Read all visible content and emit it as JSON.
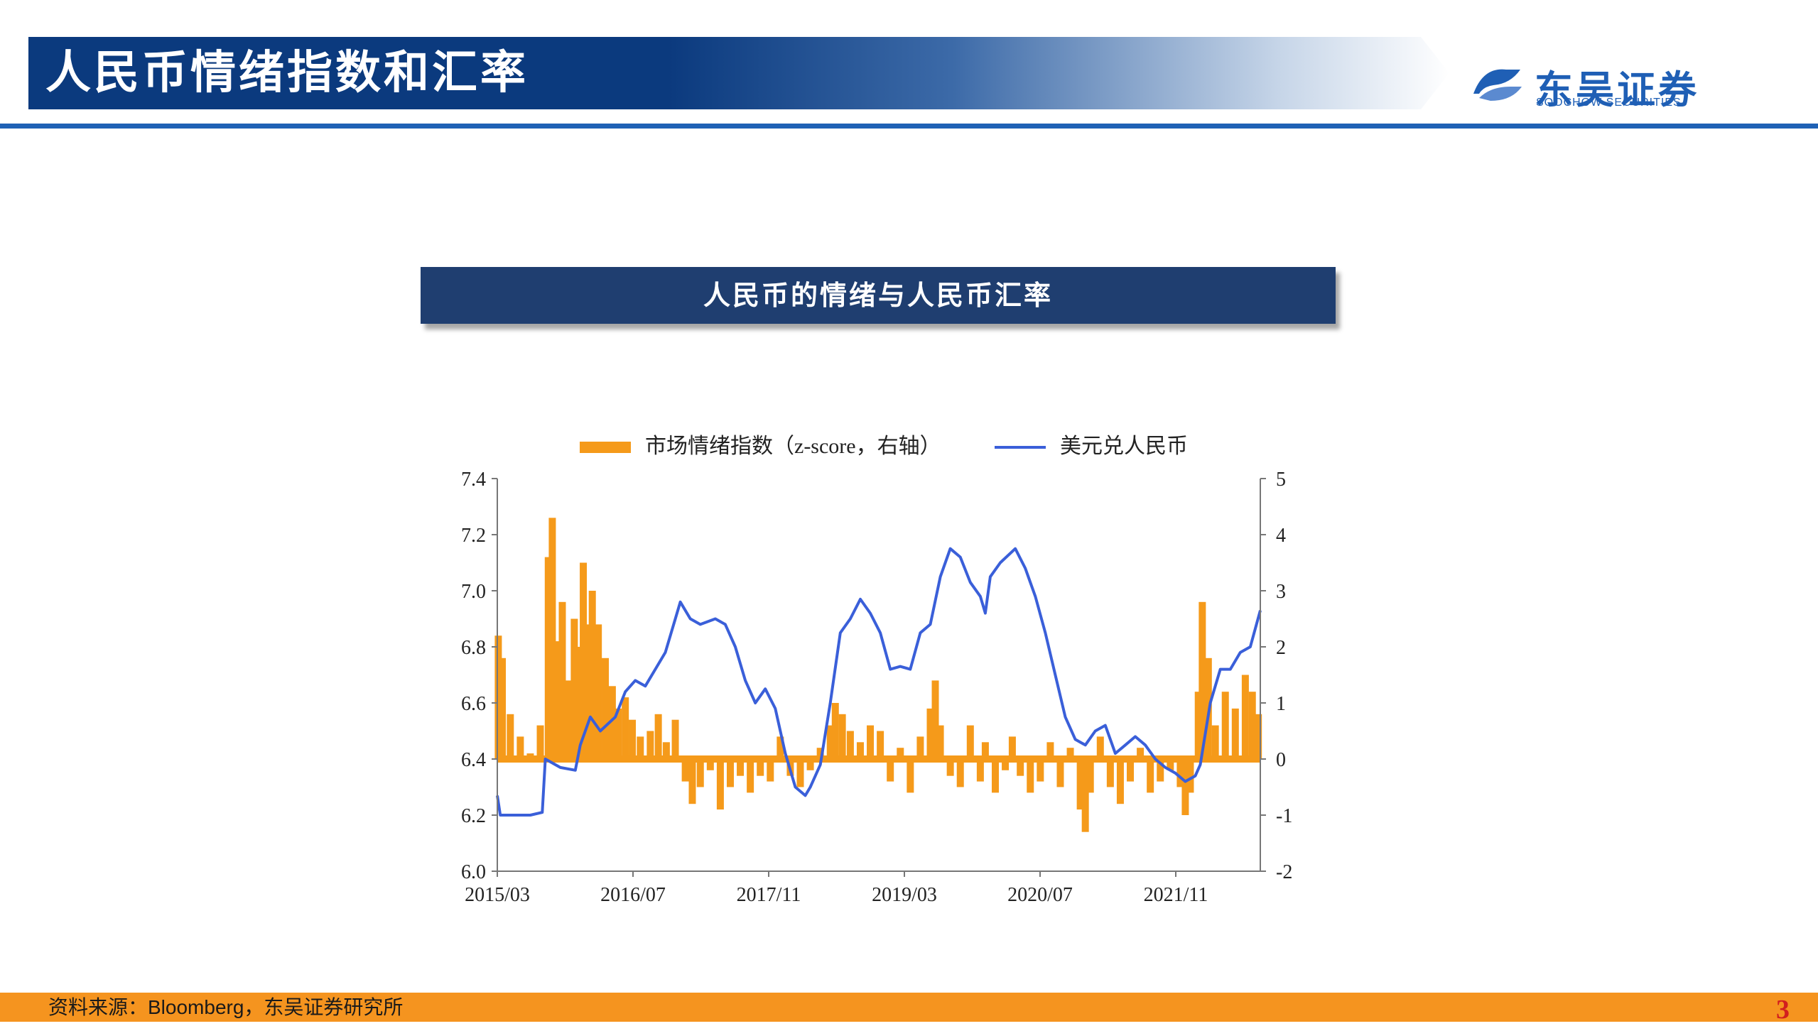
{
  "header": {
    "title": "人民币情绪指数和汇率"
  },
  "logo": {
    "cn": "东吴证券",
    "en": "SOOCHOW SECURITIES"
  },
  "chart_title": "人民币的情绪与人民币汇率",
  "legend": {
    "sentiment": "市场情绪指数（z-score，右轴）",
    "fx": "美元兑人民币"
  },
  "footer": {
    "source": "资料来源：Bloomberg，东吴证券研究所",
    "page": "3"
  },
  "colors": {
    "primary": "#1f3e70",
    "header_blue": "#0b3a7e",
    "accent_orange": "#f59a1a",
    "line_blue": "#3a5fd9",
    "page_red": "#d21f1f"
  },
  "chart_data": {
    "type": "bar+line",
    "title": "人民币的情绪与人民币汇率",
    "x_ticks": [
      "2015/03",
      "2016/07",
      "2017/11",
      "2019/03",
      "2020/07",
      "2021/11"
    ],
    "x_range": [
      2015.17,
      2022.8
    ],
    "y_left": {
      "ticks": [
        "7.4",
        "7.2",
        "7.0",
        "6.8",
        "6.6",
        "6.4",
        "6.2",
        "6.0"
      ],
      "range": [
        6.0,
        7.4
      ]
    },
    "y_right": {
      "ticks": [
        "5",
        "4",
        "3",
        "2",
        "1",
        "0",
        "-1",
        "-2"
      ],
      "range": [
        -2,
        5
      ]
    },
    "series": [
      {
        "name": "美元兑人民币",
        "axis": "left",
        "type": "line",
        "points": [
          [
            2015.17,
            6.27
          ],
          [
            2015.2,
            6.2
          ],
          [
            2015.5,
            6.2
          ],
          [
            2015.62,
            6.21
          ],
          [
            2015.65,
            6.4
          ],
          [
            2015.8,
            6.37
          ],
          [
            2015.95,
            6.36
          ],
          [
            2016.0,
            6.45
          ],
          [
            2016.1,
            6.55
          ],
          [
            2016.2,
            6.5
          ],
          [
            2016.35,
            6.55
          ],
          [
            2016.45,
            6.64
          ],
          [
            2016.55,
            6.68
          ],
          [
            2016.65,
            6.66
          ],
          [
            2016.75,
            6.72
          ],
          [
            2016.85,
            6.78
          ],
          [
            2016.95,
            6.9
          ],
          [
            2017.0,
            6.96
          ],
          [
            2017.1,
            6.9
          ],
          [
            2017.2,
            6.88
          ],
          [
            2017.35,
            6.9
          ],
          [
            2017.45,
            6.88
          ],
          [
            2017.55,
            6.8
          ],
          [
            2017.65,
            6.68
          ],
          [
            2017.75,
            6.6
          ],
          [
            2017.85,
            6.65
          ],
          [
            2017.95,
            6.58
          ],
          [
            2018.05,
            6.42
          ],
          [
            2018.15,
            6.3
          ],
          [
            2018.25,
            6.27
          ],
          [
            2018.3,
            6.3
          ],
          [
            2018.4,
            6.38
          ],
          [
            2018.5,
            6.6
          ],
          [
            2018.6,
            6.85
          ],
          [
            2018.7,
            6.9
          ],
          [
            2018.8,
            6.97
          ],
          [
            2018.9,
            6.92
          ],
          [
            2019.0,
            6.85
          ],
          [
            2019.1,
            6.72
          ],
          [
            2019.2,
            6.73
          ],
          [
            2019.3,
            6.72
          ],
          [
            2019.4,
            6.85
          ],
          [
            2019.5,
            6.88
          ],
          [
            2019.6,
            7.05
          ],
          [
            2019.7,
            7.15
          ],
          [
            2019.8,
            7.12
          ],
          [
            2019.9,
            7.03
          ],
          [
            2020.0,
            6.98
          ],
          [
            2020.05,
            6.92
          ],
          [
            2020.1,
            7.05
          ],
          [
            2020.2,
            7.1
          ],
          [
            2020.35,
            7.15
          ],
          [
            2020.45,
            7.08
          ],
          [
            2020.55,
            6.98
          ],
          [
            2020.65,
            6.85
          ],
          [
            2020.75,
            6.7
          ],
          [
            2020.85,
            6.55
          ],
          [
            2020.95,
            6.47
          ],
          [
            2021.05,
            6.45
          ],
          [
            2021.15,
            6.5
          ],
          [
            2021.25,
            6.52
          ],
          [
            2021.35,
            6.42
          ],
          [
            2021.45,
            6.45
          ],
          [
            2021.55,
            6.48
          ],
          [
            2021.65,
            6.45
          ],
          [
            2021.75,
            6.4
          ],
          [
            2021.85,
            6.37
          ],
          [
            2021.95,
            6.35
          ],
          [
            2022.05,
            6.32
          ],
          [
            2022.15,
            6.34
          ],
          [
            2022.2,
            6.38
          ],
          [
            2022.3,
            6.6
          ],
          [
            2022.4,
            6.72
          ],
          [
            2022.5,
            6.72
          ],
          [
            2022.6,
            6.78
          ],
          [
            2022.7,
            6.8
          ],
          [
            2022.8,
            6.93
          ]
        ]
      },
      {
        "name": "市场情绪指数（z-score，右轴）",
        "axis": "right",
        "type": "bar",
        "points": [
          [
            2015.18,
            2.2
          ],
          [
            2015.22,
            1.8
          ],
          [
            2015.3,
            0.8
          ],
          [
            2015.4,
            0.4
          ],
          [
            2015.5,
            0.1
          ],
          [
            2015.6,
            0.6
          ],
          [
            2015.68,
            3.6
          ],
          [
            2015.72,
            4.3
          ],
          [
            2015.76,
            2.1
          ],
          [
            2015.82,
            2.8
          ],
          [
            2015.88,
            1.4
          ],
          [
            2015.94,
            2.5
          ],
          [
            2015.98,
            2.0
          ],
          [
            2016.03,
            3.5
          ],
          [
            2016.08,
            2.4
          ],
          [
            2016.12,
            3.0
          ],
          [
            2016.18,
            2.4
          ],
          [
            2016.25,
            1.8
          ],
          [
            2016.32,
            1.3
          ],
          [
            2016.38,
            0.9
          ],
          [
            2016.45,
            1.1
          ],
          [
            2016.52,
            0.7
          ],
          [
            2016.6,
            0.4
          ],
          [
            2016.7,
            0.5
          ],
          [
            2016.78,
            0.8
          ],
          [
            2016.86,
            0.3
          ],
          [
            2016.95,
            0.7
          ],
          [
            2017.05,
            -0.4
          ],
          [
            2017.12,
            -0.8
          ],
          [
            2017.2,
            -0.5
          ],
          [
            2017.3,
            -0.2
          ],
          [
            2017.4,
            -0.9
          ],
          [
            2017.5,
            -0.5
          ],
          [
            2017.6,
            -0.3
          ],
          [
            2017.7,
            -0.6
          ],
          [
            2017.8,
            -0.3
          ],
          [
            2017.9,
            -0.4
          ],
          [
            2018.0,
            0.4
          ],
          [
            2018.1,
            -0.3
          ],
          [
            2018.2,
            -0.5
          ],
          [
            2018.3,
            -0.2
          ],
          [
            2018.4,
            0.2
          ],
          [
            2018.5,
            0.6
          ],
          [
            2018.55,
            1.0
          ],
          [
            2018.62,
            0.8
          ],
          [
            2018.7,
            0.5
          ],
          [
            2018.8,
            0.3
          ],
          [
            2018.9,
            0.6
          ],
          [
            2019.0,
            0.5
          ],
          [
            2019.1,
            -0.4
          ],
          [
            2019.2,
            0.2
          ],
          [
            2019.3,
            -0.6
          ],
          [
            2019.4,
            0.4
          ],
          [
            2019.5,
            0.9
          ],
          [
            2019.55,
            1.4
          ],
          [
            2019.6,
            0.6
          ],
          [
            2019.7,
            -0.3
          ],
          [
            2019.8,
            -0.5
          ],
          [
            2019.9,
            0.6
          ],
          [
            2020.0,
            -0.4
          ],
          [
            2020.05,
            0.3
          ],
          [
            2020.15,
            -0.6
          ],
          [
            2020.25,
            -0.2
          ],
          [
            2020.32,
            0.4
          ],
          [
            2020.4,
            -0.3
          ],
          [
            2020.5,
            -0.6
          ],
          [
            2020.6,
            -0.4
          ],
          [
            2020.7,
            0.3
          ],
          [
            2020.8,
            -0.5
          ],
          [
            2020.9,
            0.2
          ],
          [
            2021.0,
            -0.9
          ],
          [
            2021.05,
            -1.3
          ],
          [
            2021.1,
            -0.6
          ],
          [
            2021.2,
            0.4
          ],
          [
            2021.3,
            -0.5
          ],
          [
            2021.4,
            -0.8
          ],
          [
            2021.5,
            -0.4
          ],
          [
            2021.6,
            0.2
          ],
          [
            2021.7,
            -0.6
          ],
          [
            2021.8,
            -0.4
          ],
          [
            2021.9,
            -0.2
          ],
          [
            2022.0,
            -0.5
          ],
          [
            2022.05,
            -1.0
          ],
          [
            2022.1,
            -0.6
          ],
          [
            2022.18,
            1.2
          ],
          [
            2022.22,
            2.8
          ],
          [
            2022.28,
            1.8
          ],
          [
            2022.35,
            0.6
          ],
          [
            2022.45,
            1.2
          ],
          [
            2022.55,
            0.9
          ],
          [
            2022.65,
            1.5
          ],
          [
            2022.72,
            1.2
          ],
          [
            2022.78,
            0.8
          ]
        ]
      }
    ]
  }
}
